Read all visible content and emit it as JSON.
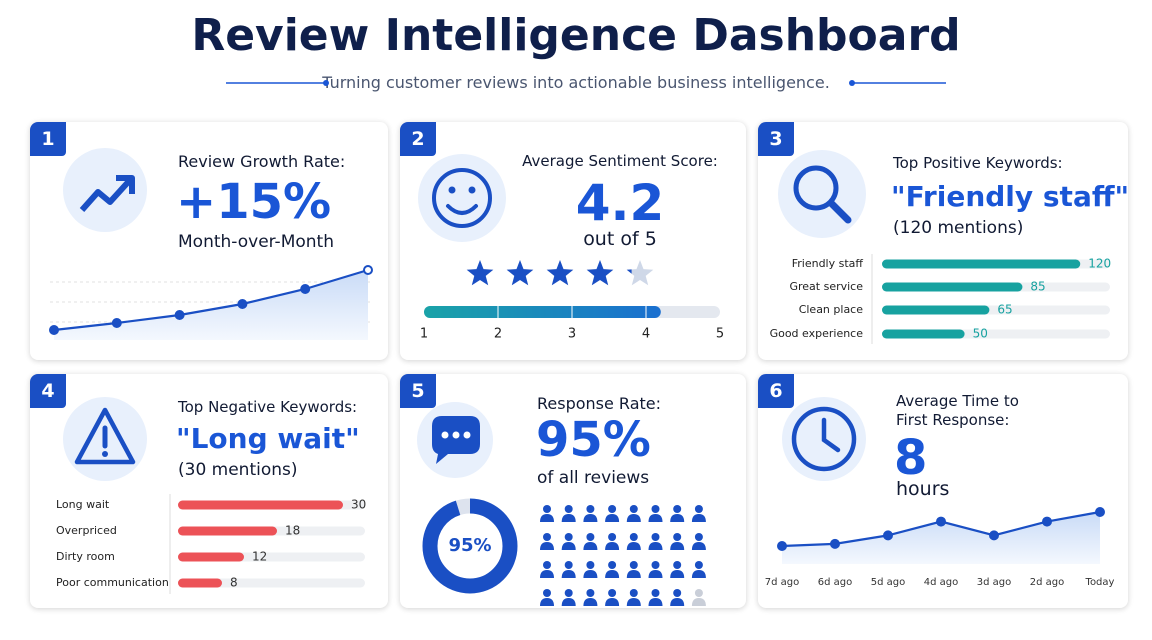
{
  "header": {
    "title": "Review Intelligence Dashboard",
    "subtitle": "Turning customer reviews into actionable business intelligence."
  },
  "cards": [
    {
      "badge": "1",
      "title": "Review Growth Rate:",
      "value": "+15%",
      "caption": "Month-over-Month",
      "chart": {
        "type": "line",
        "values": [
          0,
          7,
          15,
          26,
          41,
          60
        ],
        "color": "#1a4fc4"
      }
    },
    {
      "badge": "2",
      "title": "Average Sentiment Score:",
      "score": 4.2,
      "caption": "out of 5",
      "chart": {
        "type": "rating",
        "xlim": [
          1,
          5
        ],
        "xticks": [
          1,
          2,
          3,
          4,
          5
        ],
        "color": "#1aa3a8"
      }
    },
    {
      "badge": "3",
      "title": "Top Positive Keywords:",
      "value": "\"Friendly staff\"",
      "caption": "(120 mentions)",
      "chart": {
        "type": "hbar",
        "categories": [
          "Friendly staff",
          "Great service",
          "Clean place",
          "Good experience"
        ],
        "values": [
          120,
          85,
          65,
          50
        ],
        "xlim": [
          0,
          138
        ],
        "color": "#17a2a0"
      }
    },
    {
      "badge": "4",
      "title": "Top Negative Keywords:",
      "value": "\"Long wait\"",
      "caption": "(30 mentions)",
      "chart": {
        "type": "hbar",
        "categories": [
          "Long wait",
          "Overpriced",
          "Dirty room",
          "Poor communication"
        ],
        "values": [
          30,
          18,
          12,
          8
        ],
        "xlim": [
          0,
          34
        ],
        "color": "#ec5257"
      }
    },
    {
      "badge": "5",
      "title": "Response Rate:",
      "value": "95%",
      "caption": "of all reviews",
      "chart": {
        "type": "donut",
        "value": 95,
        "value_label": "95%",
        "color": "#1a4fc4"
      }
    },
    {
      "badge": "6",
      "title": "Average Time to First Response:",
      "value": "8",
      "caption": "hours",
      "chart": {
        "type": "line",
        "categories": [
          "7d ago",
          "6d ago",
          "5d ago",
          "4d ago",
          "3d ago",
          "2d ago",
          "Today"
        ],
        "values": [
          0,
          2,
          10,
          23,
          10,
          23,
          32
        ],
        "color": "#1a4fc4"
      }
    }
  ]
}
